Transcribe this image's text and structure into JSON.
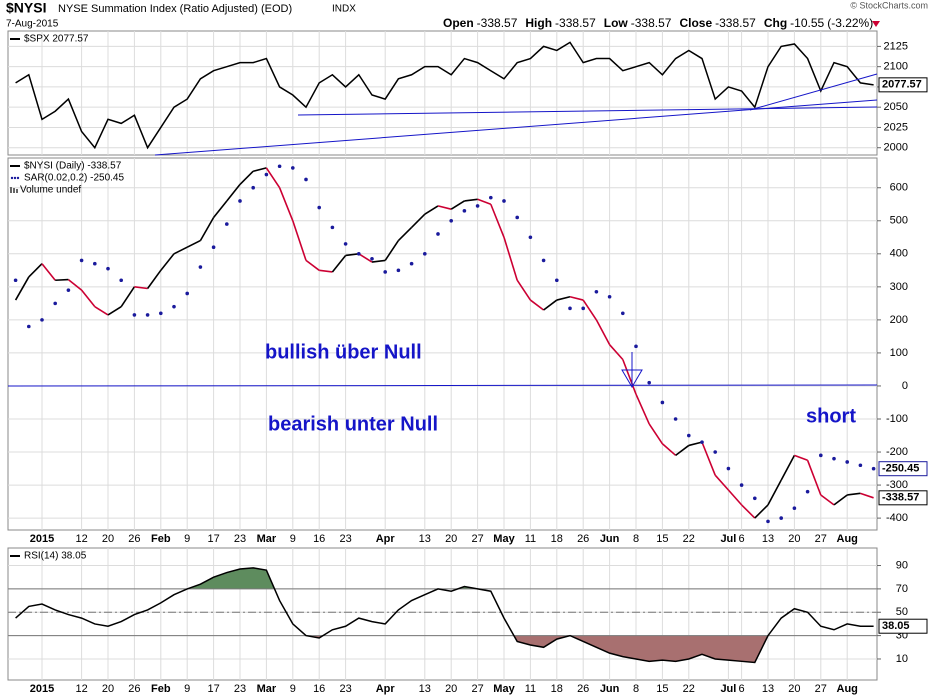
{
  "header": {
    "symbol": "$NYSI",
    "name": "NYSE Summation Index (Ratio Adjusted) (EOD)",
    "exchange": "INDX",
    "date": "7-Aug-2015",
    "copyright": "© StockCharts.com",
    "quote": [
      {
        "label": "Open",
        "value": -338.57
      },
      {
        "label": "High",
        "value": -338.57
      },
      {
        "label": "Low",
        "value": -338.57
      },
      {
        "label": "Close",
        "value": -338.57
      },
      {
        "label": "Chg",
        "value": -10.55
      }
    ],
    "change_pct": "(-3.22%)"
  },
  "chart_data": [
    {
      "type": "line",
      "ylim": [
        1991,
        2144
      ],
      "yticks": [
        2000,
        2025,
        2050,
        2075,
        2100,
        2125
      ],
      "grid": true,
      "series": [
        {
          "name": "$SPX 2077.57",
          "color": "#000000",
          "last_label": 2077.57,
          "values": [
            2080,
            2090,
            2035,
            2045,
            2060,
            2020,
            2000,
            2035,
            2030,
            2040,
            2000,
            2025,
            2050,
            2060,
            2085,
            2095,
            2100,
            2105,
            2105,
            2110,
            2075,
            2065,
            2050,
            2080,
            2090,
            2075,
            2090,
            2065,
            2060,
            2085,
            2090,
            2100,
            2100,
            2090,
            2110,
            2105,
            2095,
            2085,
            2105,
            2110,
            2125,
            2120,
            2130,
            2105,
            2110,
            2110,
            2095,
            2100,
            2105,
            2090,
            2110,
            2120,
            2110,
            2060,
            2075,
            2070,
            2050,
            2100,
            2125,
            2128,
            2110,
            2070,
            2105,
            2100,
            2080,
            2077.57
          ]
        }
      ]
    },
    {
      "type": "line",
      "ylim": [
        -436,
        690
      ],
      "yticks": [
        -400,
        -300,
        -200,
        -100,
        0,
        100,
        200,
        300,
        400,
        500,
        600
      ],
      "grid": true,
      "categories": [
        null,
        null,
        "2015",
        null,
        null,
        "12",
        null,
        "20",
        null,
        "26",
        null,
        "Feb",
        null,
        "9",
        null,
        "17",
        null,
        "23",
        null,
        "Mar",
        null,
        "9",
        null,
        "16",
        null,
        "23",
        null,
        null,
        "Apr",
        null,
        null,
        "13",
        null,
        "20",
        null,
        "27",
        null,
        "May",
        null,
        "11",
        null,
        "18",
        null,
        "26",
        null,
        "Jun",
        null,
        "8",
        null,
        "15",
        null,
        "22",
        null,
        null,
        "Jul",
        "6",
        null,
        "13",
        null,
        "20",
        null,
        "27",
        null,
        "Aug",
        null,
        null
      ],
      "volume_label": "Volume undef",
      "annotations": [
        "bullish über Null",
        "bearish unter Null",
        "short"
      ],
      "series": [
        {
          "name": "$NYSI (Daily) -338.57",
          "color": "#000000",
          "down_color": "#cc0033",
          "last_label": -338.57,
          "values": [
            260,
            330,
            370,
            320,
            322,
            290,
            240,
            215,
            240,
            300,
            295,
            350,
            400,
            420,
            440,
            510,
            560,
            610,
            650,
            660,
            600,
            500,
            380,
            350,
            345,
            395,
            400,
            375,
            380,
            440,
            480,
            520,
            545,
            535,
            560,
            565,
            550,
            450,
            320,
            260,
            230,
            260,
            270,
            260,
            200,
            125,
            80,
            -25,
            -115,
            -175,
            -210,
            -180,
            -170,
            -270,
            -315,
            -360,
            -400,
            -360,
            -285,
            -210,
            -225,
            -330,
            -360,
            -330,
            -325,
            -338.57
          ]
        },
        {
          "name": "SAR(0.02,0.2) -250.45",
          "color": "#1a1a9c",
          "style": "dots",
          "last_label": -250.45,
          "values": [
            320,
            180,
            200,
            250,
            290,
            380,
            370,
            355,
            320,
            215,
            215,
            220,
            240,
            280,
            360,
            420,
            490,
            560,
            600,
            640,
            665,
            660,
            625,
            540,
            480,
            430,
            400,
            385,
            345,
            350,
            370,
            400,
            460,
            500,
            530,
            545,
            570,
            560,
            510,
            450,
            380,
            320,
            235,
            235,
            285,
            270,
            220,
            120,
            10,
            -50,
            -100,
            -150,
            -170,
            -200,
            -250,
            -300,
            -340,
            -410,
            -400,
            -370,
            -320,
            -210,
            -220,
            -230,
            -240,
            -250.45
          ]
        }
      ]
    },
    {
      "type": "line",
      "ylim": [
        -8,
        105
      ],
      "yticks": [
        10,
        30,
        50,
        70,
        90
      ],
      "grid": true,
      "categories": [
        null,
        null,
        "2015",
        null,
        null,
        "12",
        null,
        "20",
        null,
        "26",
        null,
        "Feb",
        null,
        "9",
        null,
        "17",
        null,
        "23",
        null,
        "Mar",
        null,
        "9",
        null,
        "16",
        null,
        "23",
        null,
        null,
        "Apr",
        null,
        null,
        "13",
        null,
        "20",
        null,
        "27",
        null,
        "May",
        null,
        "11",
        null,
        "18",
        null,
        "26",
        null,
        "Jun",
        null,
        "8",
        null,
        "15",
        null,
        "22",
        null,
        null,
        "Jul",
        "6",
        null,
        "13",
        null,
        "20",
        null,
        "27",
        null,
        "Aug",
        null,
        null
      ],
      "overbought": {
        "level": 70,
        "color": "#5e8c5e"
      },
      "oversold": {
        "level": 30,
        "color": "#a87070"
      },
      "midline": 50,
      "series": [
        {
          "name": "RSI(14) 38.05",
          "color": "#000000",
          "last_label": 38.05,
          "values": [
            45,
            55,
            57,
            52,
            48,
            45,
            40,
            38,
            42,
            48,
            52,
            58,
            65,
            70,
            74,
            80,
            84,
            87,
            88,
            86,
            60,
            40,
            30,
            28,
            35,
            38,
            45,
            42,
            40,
            52,
            60,
            65,
            70,
            68,
            72,
            70,
            68,
            45,
            25,
            22,
            20,
            27,
            30,
            25,
            20,
            15,
            12,
            10,
            8,
            9,
            8,
            10,
            14,
            10,
            9,
            8,
            7,
            30,
            45,
            53,
            50,
            38,
            35,
            40,
            38,
            38.05
          ]
        }
      ]
    }
  ]
}
